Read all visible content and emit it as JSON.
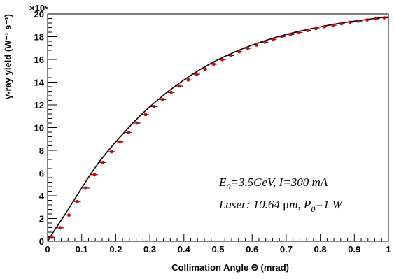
{
  "chart_data": {
    "type": "scatter",
    "title": "",
    "xlabel": "Collimation Angle Θ (mrad)",
    "ylabel": "γ-ray yield (W⁻¹ s⁻¹)",
    "y_multiplier": "×10⁶",
    "xlim": [
      0,
      1
    ],
    "ylim": [
      0,
      20
    ],
    "x_ticks": [
      "0",
      "0.1",
      "0.2",
      "0.3",
      "0.4",
      "0.5",
      "0.6",
      "0.7",
      "0.8",
      "0.9",
      "1"
    ],
    "y_ticks": [
      "0",
      "2",
      "4",
      "6",
      "8",
      "10",
      "12",
      "14",
      "16",
      "18",
      "20"
    ],
    "grid": false,
    "series": [
      {
        "kind": "curve",
        "color": "#000000",
        "x": [
          0.0,
          0.025,
          0.05,
          0.075,
          0.1,
          0.125,
          0.15,
          0.175,
          0.2,
          0.225,
          0.25,
          0.275,
          0.3,
          0.325,
          0.35,
          0.375,
          0.4,
          0.425,
          0.45,
          0.475,
          0.5,
          0.525,
          0.55,
          0.575,
          0.6,
          0.625,
          0.65,
          0.675,
          0.7,
          0.725,
          0.75,
          0.775,
          0.8,
          0.825,
          0.85,
          0.875,
          0.9,
          0.925,
          0.95,
          0.975,
          1.0
        ],
        "y": [
          0.0,
          1.18,
          2.3,
          3.49,
          4.68,
          5.86,
          6.93,
          7.88,
          8.75,
          9.58,
          10.4,
          11.14,
          11.85,
          12.47,
          13.09,
          13.66,
          14.2,
          14.7,
          15.16,
          15.58,
          15.98,
          16.34,
          16.67,
          16.98,
          17.26,
          17.52,
          17.77,
          17.99,
          18.19,
          18.38,
          18.55,
          18.71,
          18.87,
          19.01,
          19.14,
          19.26,
          19.37,
          19.47,
          19.57,
          19.66,
          19.74
        ]
      },
      {
        "kind": "points",
        "color": "#e00000",
        "x": [
          0.0125,
          0.0375,
          0.0625,
          0.0875,
          0.1125,
          0.1375,
          0.1625,
          0.1875,
          0.2125,
          0.2375,
          0.2625,
          0.2875,
          0.3125,
          0.3375,
          0.3625,
          0.3875,
          0.4125,
          0.4375,
          0.4625,
          0.4875,
          0.5125,
          0.5375,
          0.5625,
          0.5875,
          0.6125,
          0.6375,
          0.6625,
          0.6875,
          0.7125,
          0.7375,
          0.7625,
          0.7875,
          0.8125,
          0.8375,
          0.8625,
          0.8875,
          0.9125,
          0.9375,
          0.9625,
          0.9875
        ],
        "y": [
          0.35,
          1.18,
          2.3,
          3.49,
          4.68,
          5.86,
          6.93,
          7.88,
          8.75,
          9.58,
          10.4,
          11.14,
          11.85,
          12.47,
          13.09,
          13.66,
          14.2,
          14.7,
          15.16,
          15.58,
          15.98,
          16.34,
          16.67,
          16.98,
          17.26,
          17.52,
          17.77,
          17.99,
          18.19,
          18.38,
          18.55,
          18.71,
          18.87,
          19.01,
          19.14,
          19.26,
          19.37,
          19.47,
          19.57,
          19.66
        ]
      }
    ],
    "annotations": {
      "line1": {
        "E": "E",
        "E_sub": "0",
        "rest": "=3.5GeV, I=300 mA"
      },
      "line2": {
        "prefix": "Laser: 10.64 ",
        "mu": "μ",
        "m": "m, P",
        "P_sub": "0",
        "rest": "=1 W"
      }
    }
  }
}
